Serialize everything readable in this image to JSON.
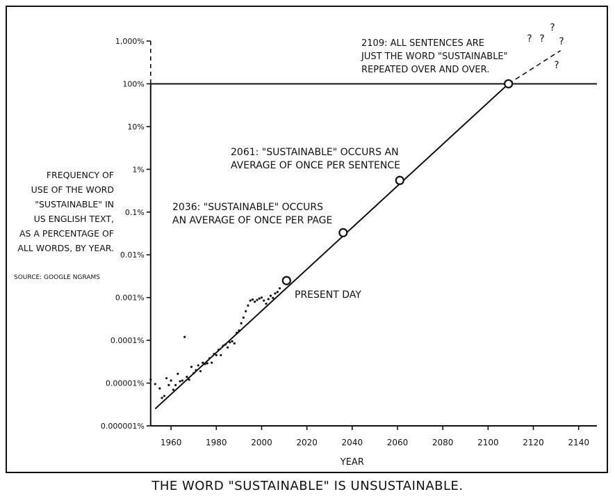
{
  "chart_data": {
    "type": "line",
    "title": "THE WORD \"SUSTAINABLE\" IS UNSUSTAINABLE.",
    "xlabel": "YEAR",
    "ylabel_lines": [
      "FREQUENCY OF",
      "USE OF THE WORD",
      "\"SUSTAINABLE\" IN",
      "US ENGLISH TEXT,",
      "AS A PERCENTAGE OF",
      "ALL WORDS, BY YEAR."
    ],
    "source": "SOURCE: GOOGLE NGRAMS",
    "y_scale": "log",
    "xlim": [
      1951,
      2145
    ],
    "ylim_percent": [
      1e-06,
      1000
    ],
    "x_ticks": [
      1960,
      1980,
      2000,
      2020,
      2040,
      2060,
      2080,
      2100,
      2120,
      2140
    ],
    "y_ticks": [
      {
        "value": 1e-06,
        "label": "0.000001%"
      },
      {
        "value": 1e-05,
        "label": "0.00001%"
      },
      {
        "value": 0.0001,
        "label": "0.0001%"
      },
      {
        "value": 0.001,
        "label": "0.001%"
      },
      {
        "value": 0.01,
        "label": "0.01%"
      },
      {
        "value": 0.1,
        "label": "0.1%"
      },
      {
        "value": 1,
        "label": "1%"
      },
      {
        "value": 10,
        "label": "10%"
      },
      {
        "value": 100,
        "label": "100%"
      },
      {
        "value": 1000,
        "label": "1,000%"
      }
    ],
    "horizontal_line_percent": 100,
    "trend_line": {
      "solid": [
        [
          1953,
          2.5e-06
        ],
        [
          2109,
          100
        ]
      ],
      "dashed": [
        [
          2109,
          100
        ],
        [
          2132,
          600
        ]
      ]
    },
    "observed_points": [
      [
        1951,
        1.2e-05
      ],
      [
        1953,
        9.5e-06
      ],
      [
        1955,
        7.5e-06
      ],
      [
        1956,
        4.5e-06
      ],
      [
        1957,
        5e-06
      ],
      [
        1958,
        1.3e-05
      ],
      [
        1959,
        9e-06
      ],
      [
        1960,
        1.15e-05
      ],
      [
        1961,
        7e-06
      ],
      [
        1962,
        9e-06
      ],
      [
        1963,
        1.65e-05
      ],
      [
        1964,
        1.1e-05
      ],
      [
        1965,
        1.15e-05
      ],
      [
        1966,
        0.00012
      ],
      [
        1967,
        1.4e-05
      ],
      [
        1968,
        1.2e-05
      ],
      [
        1969,
        2.4e-05
      ],
      [
        1970,
        1.7e-05
      ],
      [
        1971,
        2e-05
      ],
      [
        1972,
        2.6e-05
      ],
      [
        1973,
        1.9e-05
      ],
      [
        1974,
        3e-05
      ],
      [
        1975,
        2.8e-05
      ],
      [
        1976,
        2.9e-05
      ],
      [
        1977,
        3.8e-05
      ],
      [
        1978,
        3e-05
      ],
      [
        1979,
        4.8e-05
      ],
      [
        1980,
        4.5e-05
      ],
      [
        1981,
        6e-05
      ],
      [
        1982,
        4.5e-05
      ],
      [
        1983,
        7.5e-05
      ],
      [
        1984,
        8e-05
      ],
      [
        1985,
        6.8e-05
      ],
      [
        1986,
        9e-05
      ],
      [
        1987,
        9.5e-05
      ],
      [
        1988,
        8.5e-05
      ],
      [
        1989,
        0.00015
      ],
      [
        1990,
        0.00017
      ],
      [
        1991,
        0.00025
      ],
      [
        1992,
        0.00034
      ],
      [
        1993,
        0.00048
      ],
      [
        1994,
        0.00065
      ],
      [
        1995,
        0.00085
      ],
      [
        1996,
        0.0009
      ],
      [
        1997,
        0.0008
      ],
      [
        1998,
        0.00088
      ],
      [
        1999,
        0.00095
      ],
      [
        2000,
        0.001
      ],
      [
        2001,
        0.00085
      ],
      [
        2002,
        0.00072
      ],
      [
        2003,
        0.00092
      ],
      [
        2004,
        0.0011
      ],
      [
        2005,
        0.00098
      ],
      [
        2006,
        0.00125
      ],
      [
        2007,
        0.00135
      ],
      [
        2008,
        0.00165
      ]
    ],
    "milestones": [
      {
        "year": 2011,
        "percent": 0.0025,
        "label_lines": [
          "PRESENT DAY"
        ]
      },
      {
        "year": 2036,
        "percent": 0.033,
        "label_lines": [
          "2036: \"SUSTAINABLE\" OCCURS",
          "AN AVERAGE OF ONCE PER PAGE"
        ]
      },
      {
        "year": 2061,
        "percent": 0.55,
        "label_lines": [
          "2061: \"SUSTAINABLE\" OCCURS AN",
          "AVERAGE OF ONCE PER SENTENCE"
        ]
      },
      {
        "year": 2109,
        "percent": 100,
        "label_lines": [
          "2109: ALL SENTENCES ARE",
          "JUST THE WORD \"SUSTAINABLE\"",
          "REPEATED OVER AND OVER."
        ]
      }
    ],
    "question_marks": [
      "?",
      "?",
      "?",
      "?",
      "?"
    ]
  }
}
